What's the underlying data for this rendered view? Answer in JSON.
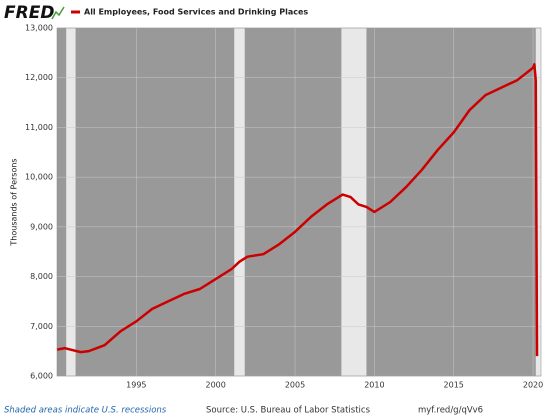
{
  "header": {
    "logo": "FRED"
  },
  "chart_data": {
    "type": "line",
    "ylabel": "Thousands of Persons",
    "x": [
      1990,
      1990.5,
      1991,
      1991.5,
      1992,
      1993,
      1994,
      1995,
      1996,
      1997,
      1998,
      1999,
      2000,
      2001,
      2001.5,
      2002,
      2003,
      2004,
      2005,
      2006,
      2007,
      2008,
      2008.5,
      2009,
      2009.5,
      2010,
      2011,
      2012,
      2013,
      2014,
      2015,
      2016,
      2017,
      2018,
      2019,
      2020,
      2020.08,
      2020.17,
      2020.25
    ],
    "series": [
      {
        "name": "All Employees, Food Services and Drinking Places",
        "color": "#cc0000",
        "values": [
          6530,
          6560,
          6520,
          6480,
          6500,
          6620,
          6900,
          7100,
          7350,
          7500,
          7650,
          7750,
          7950,
          8150,
          8300,
          8400,
          8450,
          8650,
          8900,
          9200,
          9450,
          9650,
          9600,
          9450,
          9400,
          9300,
          9500,
          9800,
          10150,
          10550,
          10900,
          11350,
          11650,
          11800,
          11950,
          12200,
          12270,
          11950,
          6400
        ]
      }
    ],
    "recessions": [
      [
        1990.58,
        1991.17
      ],
      [
        2001.17,
        2001.83
      ],
      [
        2007.92,
        2009.5
      ],
      [
        2020.17,
        2020.5
      ]
    ],
    "recession_note": "Shaded areas indicate U.S. recessions",
    "source": "Source: U.S. Bureau of Labor Statistics",
    "link": "myf.red/g/qVv6",
    "xlim": [
      1990,
      2020.5
    ],
    "xticks": [
      1995,
      2000,
      2005,
      2010,
      2015,
      2020
    ],
    "ylim": [
      6000,
      13000
    ],
    "yticks": [
      {
        "value": 6000,
        "label": "6,000"
      },
      {
        "value": 7000,
        "label": "7,000"
      },
      {
        "value": 8000,
        "label": "8,000"
      },
      {
        "value": 9000,
        "label": "9,000"
      },
      {
        "value": 10000,
        "label": "10,000"
      },
      {
        "value": 11000,
        "label": "11,000"
      },
      {
        "value": 12000,
        "label": "12,000"
      },
      {
        "value": 13000,
        "label": "13,000"
      }
    ],
    "grid": true
  }
}
